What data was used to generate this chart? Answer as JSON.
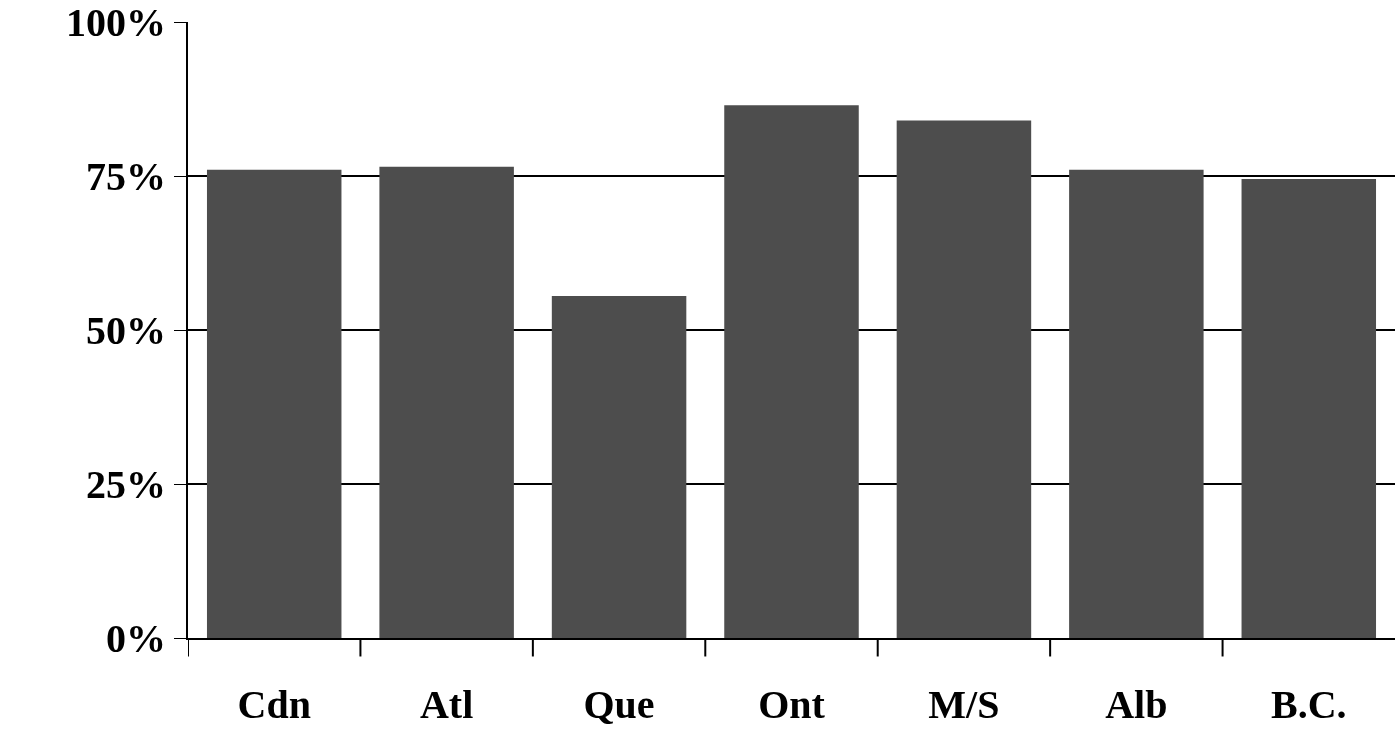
{
  "chart_data": {
    "type": "bar",
    "categories": [
      "Cdn",
      "Atl",
      "Que",
      "Ont",
      "M/S",
      "Alb",
      "B.C."
    ],
    "values": [
      76,
      76.5,
      55.5,
      86.5,
      84,
      76,
      74.5
    ],
    "color": "#4d4d4d",
    "ylim": [
      0,
      100
    ],
    "yticks": [
      {
        "value": 0,
        "label": "0%"
      },
      {
        "value": 25,
        "label": "25%"
      },
      {
        "value": 50,
        "label": "50%"
      },
      {
        "value": 75,
        "label": "75%"
      },
      {
        "value": 100,
        "label": "100%"
      }
    ],
    "grid": "y"
  }
}
